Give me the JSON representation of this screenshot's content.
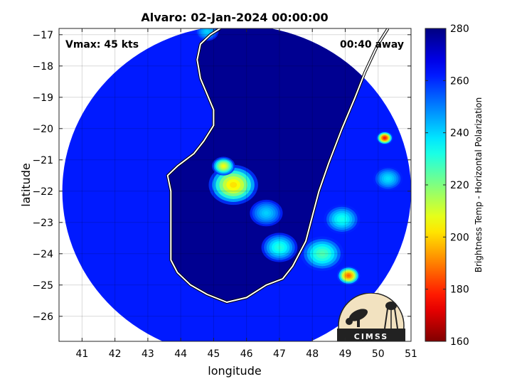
{
  "chart_data": {
    "type": "heatmap",
    "title": "Alvaro: 02-Jan-2024 00:00:00",
    "xlabel": "longitude",
    "ylabel": "latitude",
    "xlim": [
      40.3,
      51
    ],
    "ylim": [
      -26.8,
      -16.8
    ],
    "xticks": [
      41,
      42,
      43,
      44,
      45,
      46,
      47,
      48,
      49,
      50,
      51
    ],
    "yticks": [
      -17,
      -18,
      -19,
      -20,
      -21,
      -22,
      -23,
      -24,
      -25,
      -26
    ],
    "grid": true,
    "annotations": {
      "left": "Vmax: 45 kts",
      "right": "00:40 away"
    },
    "colorbar": {
      "label": "Brightness Temp - Horizontal Polarization",
      "range": [
        160,
        280
      ],
      "ticks": [
        160,
        180,
        200,
        220,
        240,
        260,
        280
      ],
      "colormap": "jet"
    },
    "swath": {
      "center": [
        45.7,
        -22.0
      ],
      "radius_deg": 5.3
    },
    "background_temp": 262,
    "land_temp": 278,
    "features": [
      {
        "lon": 45.6,
        "lat": -21.8,
        "min_temp": 200,
        "spread": 0.75
      },
      {
        "lon": 45.3,
        "lat": -21.2,
        "min_temp": 205,
        "spread": 0.35
      },
      {
        "lon": 49.1,
        "lat": -24.7,
        "min_temp": 185,
        "spread": 0.35
      },
      {
        "lon": 50.2,
        "lat": -20.3,
        "min_temp": 175,
        "spread": 0.25
      },
      {
        "lon": 48.3,
        "lat": -24.0,
        "min_temp": 225,
        "spread": 0.65
      },
      {
        "lon": 47.0,
        "lat": -23.8,
        "min_temp": 230,
        "spread": 0.55
      },
      {
        "lon": 48.9,
        "lat": -22.9,
        "min_temp": 232,
        "spread": 0.55
      },
      {
        "lon": 50.3,
        "lat": -21.6,
        "min_temp": 238,
        "spread": 0.45
      },
      {
        "lon": 44.8,
        "lat": -16.9,
        "min_temp": 240,
        "spread": 0.35
      },
      {
        "lon": 46.6,
        "lat": -22.7,
        "min_temp": 240,
        "spread": 0.5
      }
    ],
    "coastline": [
      [
        45.2,
        -16.8
      ],
      [
        44.9,
        -17.0
      ],
      [
        44.6,
        -17.3
      ],
      [
        44.5,
        -17.8
      ],
      [
        44.6,
        -18.4
      ],
      [
        44.8,
        -18.9
      ],
      [
        45.0,
        -19.4
      ],
      [
        45.0,
        -19.9
      ],
      [
        44.7,
        -20.4
      ],
      [
        44.4,
        -20.8
      ],
      [
        43.9,
        -21.2
      ],
      [
        43.6,
        -21.5
      ],
      [
        43.7,
        -22.0
      ],
      [
        43.7,
        -22.6
      ],
      [
        43.7,
        -23.1
      ],
      [
        43.7,
        -23.6
      ],
      [
        43.7,
        -24.2
      ],
      [
        43.9,
        -24.6
      ],
      [
        44.3,
        -25.0
      ],
      [
        44.8,
        -25.3
      ],
      [
        45.4,
        -25.55
      ],
      [
        46.0,
        -25.4
      ],
      [
        46.6,
        -25.0
      ],
      [
        47.1,
        -24.8
      ],
      [
        47.4,
        -24.4
      ],
      [
        47.8,
        -23.6
      ],
      [
        48.0,
        -22.8
      ],
      [
        48.2,
        -22.0
      ],
      [
        48.5,
        -21.1
      ],
      [
        48.9,
        -20.0
      ],
      [
        49.3,
        -19.0
      ],
      [
        49.6,
        -18.2
      ],
      [
        50.0,
        -17.3
      ],
      [
        50.3,
        -16.8
      ]
    ]
  },
  "logo": {
    "text": "CIMSS"
  }
}
